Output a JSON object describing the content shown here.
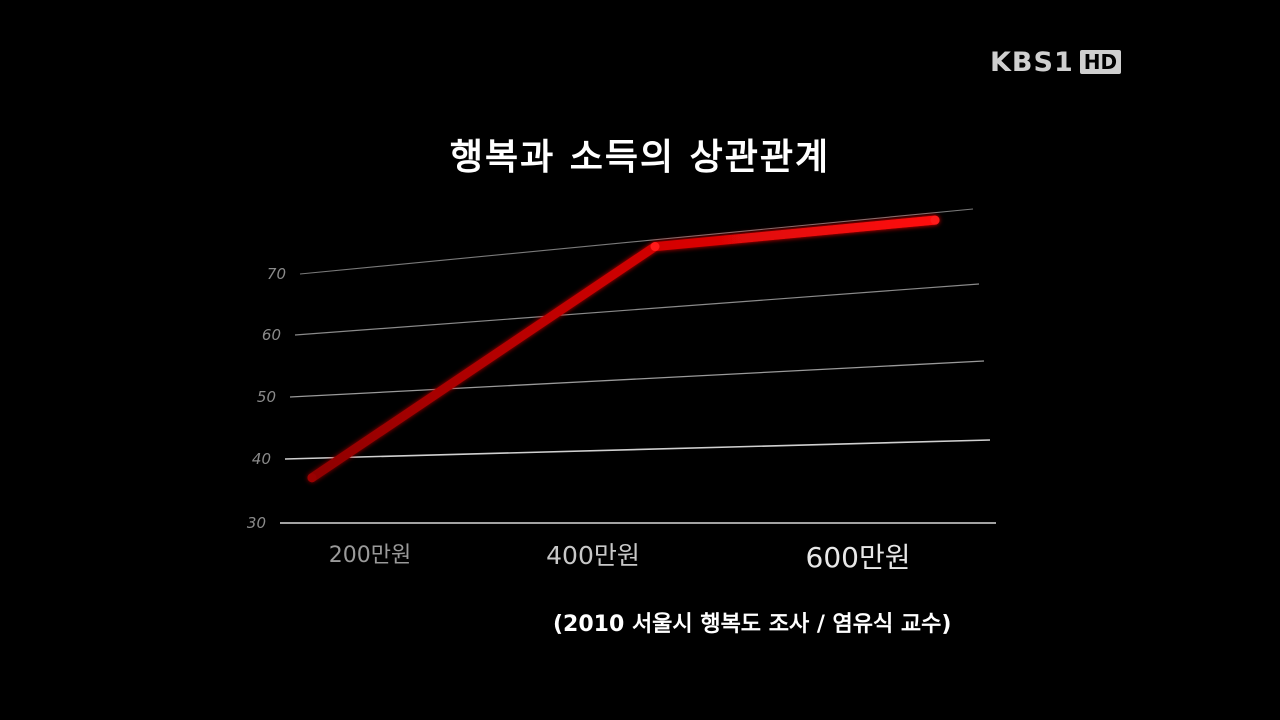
{
  "logo": {
    "channel": "KBS1",
    "badge": "HD"
  },
  "chart_data": {
    "type": "line",
    "title": "행복과 소득의 상관관계",
    "xlabel": "",
    "ylabel": "",
    "categories": [
      "200만원",
      "400만원",
      "600만원"
    ],
    "y_ticks": [
      30,
      40,
      50,
      60,
      70
    ],
    "ylim": [
      30,
      70
    ],
    "grid": true,
    "series": [
      {
        "name": "",
        "color": "#e00000",
        "points": [
          {
            "x": "200만원",
            "y": 37
          },
          {
            "x": "400만원",
            "y": 69
          },
          {
            "x": "600만원",
            "y": 69
          }
        ]
      }
    ],
    "source_note": "(2010 서울시 행복도 조사 / 염유식 교수)"
  }
}
